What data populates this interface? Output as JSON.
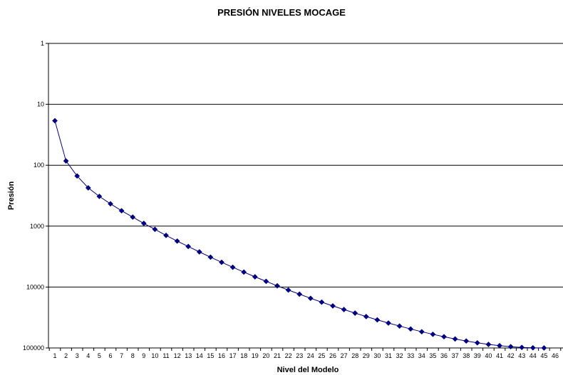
{
  "chart_data": {
    "type": "line",
    "title": "PRESIÓN NIVELES MOCAGE",
    "xlabel": "Nivel del Modelo",
    "ylabel": "Presión",
    "y_scale": "log",
    "y_reversed": true,
    "ylim": [
      1,
      100000
    ],
    "y_ticks": [
      "1",
      "10",
      "100",
      "1000",
      "10000",
      "100000"
    ],
    "x_ticks": [
      "1",
      "2",
      "3",
      "4",
      "5",
      "6",
      "7",
      "8",
      "9",
      "10",
      "11",
      "12",
      "13",
      "14",
      "15",
      "16",
      "17",
      "18",
      "19",
      "20",
      "21",
      "22",
      "23",
      "24",
      "25",
      "26",
      "27",
      "28",
      "29",
      "30",
      "31",
      "32",
      "33",
      "34",
      "35",
      "36",
      "37",
      "38",
      "39",
      "40",
      "41",
      "42",
      "43",
      "44",
      "45",
      "46",
      "4"
    ],
    "grid": "horizontal",
    "legend": "none",
    "series_color": "#000080",
    "series": [
      {
        "x": [
          1,
          2,
          3,
          4,
          5,
          6,
          7,
          8,
          9,
          10,
          11,
          12,
          13,
          14,
          15,
          16,
          17,
          18,
          19,
          20,
          21,
          22,
          23,
          24,
          25,
          26,
          27,
          28,
          29,
          30,
          31,
          32,
          33,
          34,
          35,
          36,
          37,
          38,
          39,
          40,
          41,
          42,
          43,
          44,
          45
        ],
        "values": [
          18.6,
          85,
          150,
          235,
          325,
          430,
          560,
          710,
          900,
          1130,
          1420,
          1760,
          2160,
          2650,
          3230,
          3920,
          4730,
          5690,
          6780,
          8070,
          9550,
          11200,
          13100,
          15300,
          17700,
          20400,
          23400,
          26800,
          30500,
          34600,
          39000,
          43700,
          48800,
          54200,
          59700,
          65400,
          71200,
          76900,
          82400,
          87400,
          91800,
          95400,
          97900,
          99400,
          100000
        ]
      }
    ]
  }
}
